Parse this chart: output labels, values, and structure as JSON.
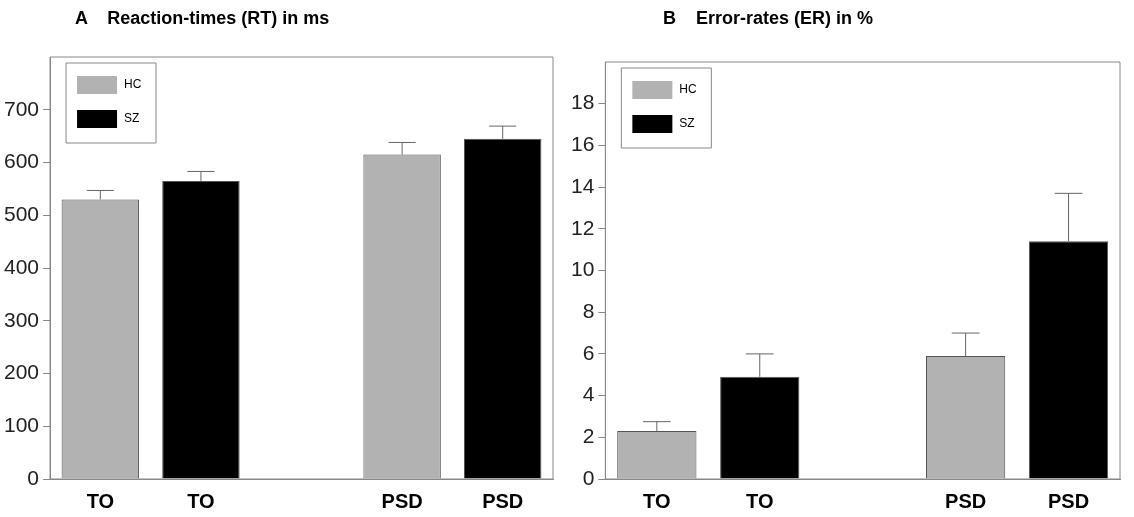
{
  "chart_data": [
    {
      "type": "bar",
      "title": "A    Reaction-times (RT) in ms",
      "categories": [
        "TO",
        "TO",
        null,
        "PSD",
        "PSD"
      ],
      "series": [
        {
          "name": "HC",
          "color": "#b2b2b2",
          "values": [
            530,
            null,
            null,
            615,
            null
          ],
          "errors": [
            [
              530,
              547
            ],
            null,
            null,
            [
              615,
              638
            ],
            null
          ]
        },
        {
          "name": "SZ",
          "color": "#000000",
          "values": [
            null,
            565,
            null,
            null,
            645
          ],
          "errors": [
            null,
            [
              565,
              583
            ],
            null,
            null,
            [
              645,
              669
            ]
          ]
        }
      ],
      "ylim": [
        0,
        800
      ],
      "yticks": [
        0,
        100,
        200,
        300,
        400,
        500,
        600,
        700
      ],
      "grid": false,
      "legend": "top left"
    },
    {
      "type": "bar",
      "title": "B    Error-rates (ER) in %",
      "categories": [
        "TO",
        "TO",
        null,
        "PSD",
        "PSD"
      ],
      "series": [
        {
          "name": "HC",
          "color": "#b2b2b2",
          "values": [
            2.3,
            null,
            null,
            5.9,
            null
          ],
          "errors": [
            [
              2.3,
              2.75
            ],
            null,
            null,
            [
              5.9,
              7.0
            ],
            null
          ]
        },
        {
          "name": "SZ",
          "color": "#000000",
          "values": [
            null,
            4.9,
            null,
            null,
            11.4
          ],
          "errors": [
            null,
            [
              4.9,
              6.0
            ],
            null,
            null,
            [
              11.4,
              13.7
            ]
          ]
        }
      ],
      "ylim": [
        0,
        20
      ],
      "yticks": [
        0,
        2,
        4,
        6,
        8,
        10,
        12,
        14,
        16,
        18
      ],
      "grid": false,
      "legend": "top left"
    }
  ]
}
